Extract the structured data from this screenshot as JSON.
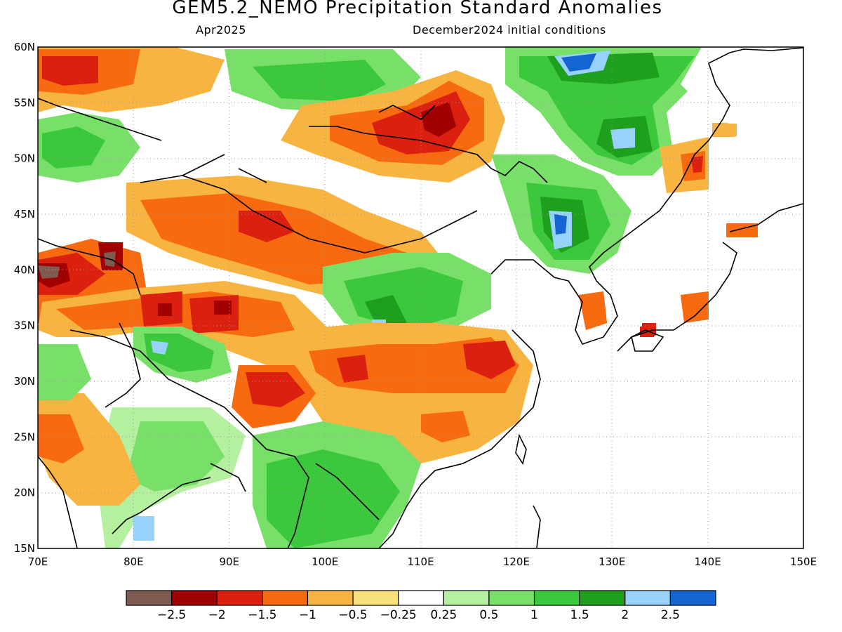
{
  "title": "GEM5.2_NEMO Precipitation Standard Anomalies",
  "subtitle_left": "Apr2025",
  "subtitle_right": "December2024 initial conditions",
  "map": {
    "lon_range": [
      70,
      150
    ],
    "lat_range": [
      15,
      60
    ],
    "lon_ticks": [
      "70E",
      "80E",
      "90E",
      "100E",
      "110E",
      "120E",
      "130E",
      "140E",
      "150E"
    ],
    "lat_ticks": [
      "60N",
      "55N",
      "50N",
      "45N",
      "40N",
      "35N",
      "30N",
      "25N",
      "20N",
      "15N"
    ],
    "grid": "dotted"
  },
  "colorbar": {
    "colors": [
      "#7f5a50",
      "#a00000",
      "#dc2010",
      "#f86a10",
      "#f8b440",
      "#f8e07a",
      "#ffffff",
      "#b4f0a0",
      "#78e068",
      "#3cc83c",
      "#1ea01e",
      "#96d2fa",
      "#1464d2"
    ],
    "labels": [
      "−2.5",
      "−2",
      "−1.5",
      "−1",
      "−0.5",
      "−0.25",
      "0.25",
      "0.5",
      "1",
      "1.5",
      "2",
      "2.5"
    ]
  }
}
